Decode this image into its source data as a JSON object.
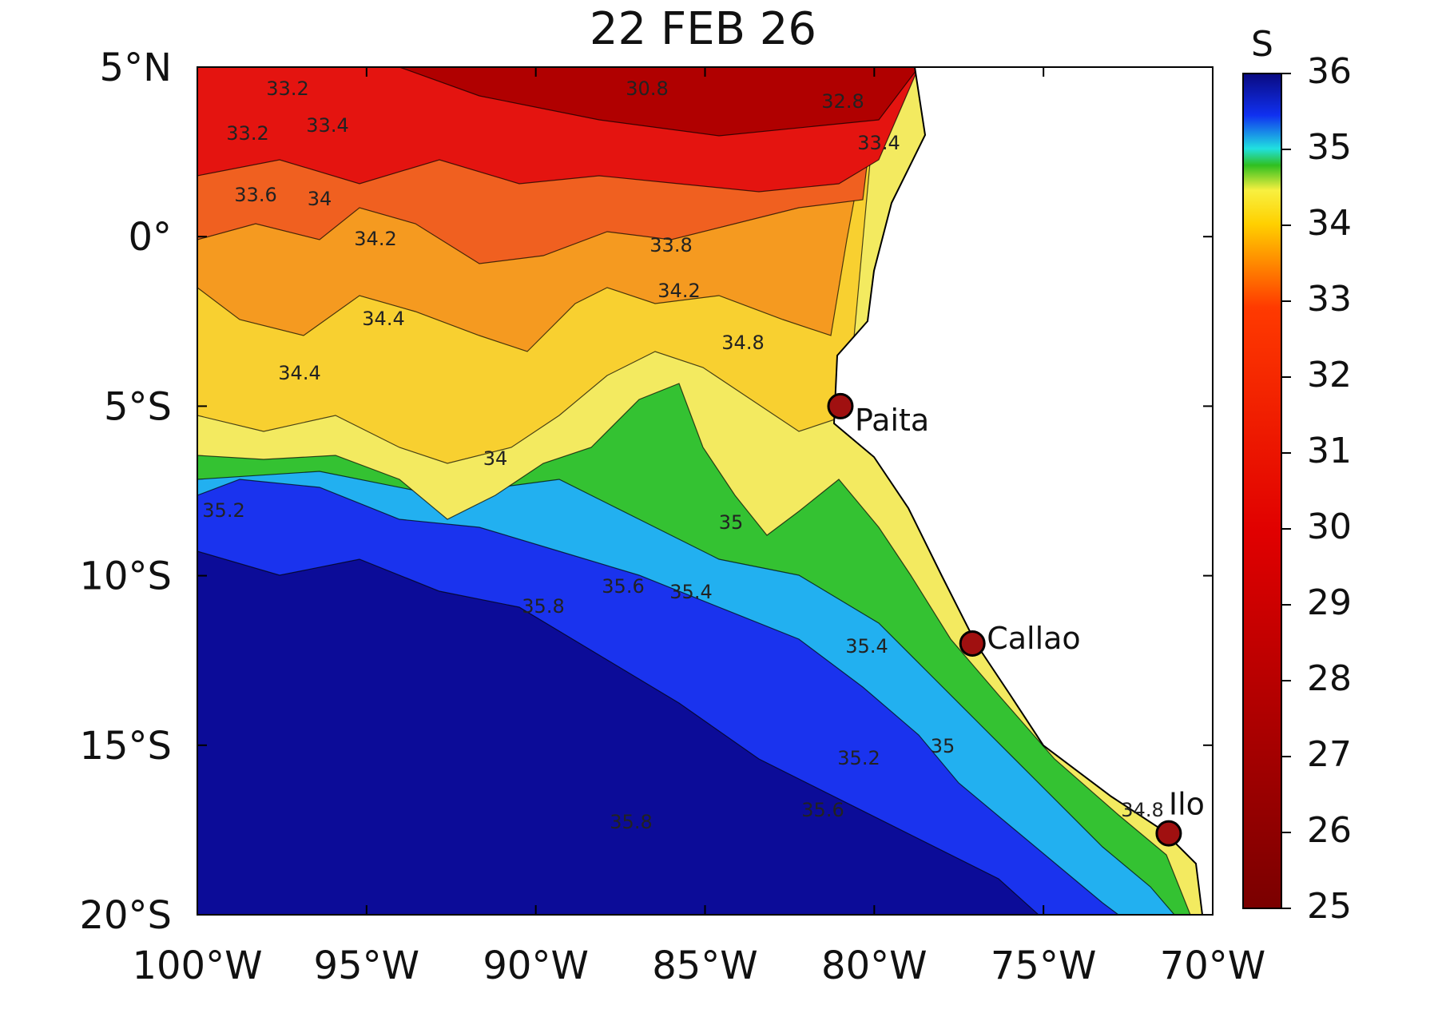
{
  "map": {
    "title": "22 FEB 26",
    "lonlim": [
      -100,
      -70
    ],
    "latlim": [
      -20,
      5
    ],
    "lonticks": [
      {
        "value": -100,
        "label": "100°W"
      },
      {
        "value": -95,
        "label": "95°W"
      },
      {
        "value": -90,
        "label": "90°W"
      },
      {
        "value": -85,
        "label": "85°W"
      },
      {
        "value": -80,
        "label": "80°W"
      },
      {
        "value": -75,
        "label": "75°W"
      },
      {
        "value": -70,
        "label": "70°W"
      }
    ],
    "latticks": [
      {
        "value": 5,
        "label": "5°N"
      },
      {
        "value": 0,
        "label": "0°"
      },
      {
        "value": -5,
        "label": "5°S"
      },
      {
        "value": -10,
        "label": "10°S"
      },
      {
        "value": -15,
        "label": "15°S"
      },
      {
        "value": -20,
        "label": "20°S"
      }
    ],
    "colorbar": {
      "label": "S",
      "clim": [
        25,
        36
      ],
      "ticks": [
        25,
        26,
        27,
        28,
        29,
        30,
        31,
        32,
        33,
        34,
        35,
        36
      ]
    },
    "ports": [
      {
        "name": "Paita",
        "lon": -81,
        "lat": -5
      },
      {
        "name": "Callao",
        "lon": -77.1,
        "lat": -12
      },
      {
        "name": "Ilo",
        "lon": -71.3,
        "lat": -17.6
      }
    ],
    "contour_labels": [
      "33.2",
      "33.2",
      "33.4",
      "33.6",
      "34",
      "34.2",
      "34.4",
      "33.8",
      "34.2",
      "34.8",
      "34.4",
      "34",
      "35.2",
      "35",
      "35.4",
      "35.6",
      "35.8",
      "35.4",
      "35",
      "34.8",
      "35.2",
      "35.6",
      "35.8",
      "30.8",
      "32.8",
      "33.4"
    ]
  }
}
